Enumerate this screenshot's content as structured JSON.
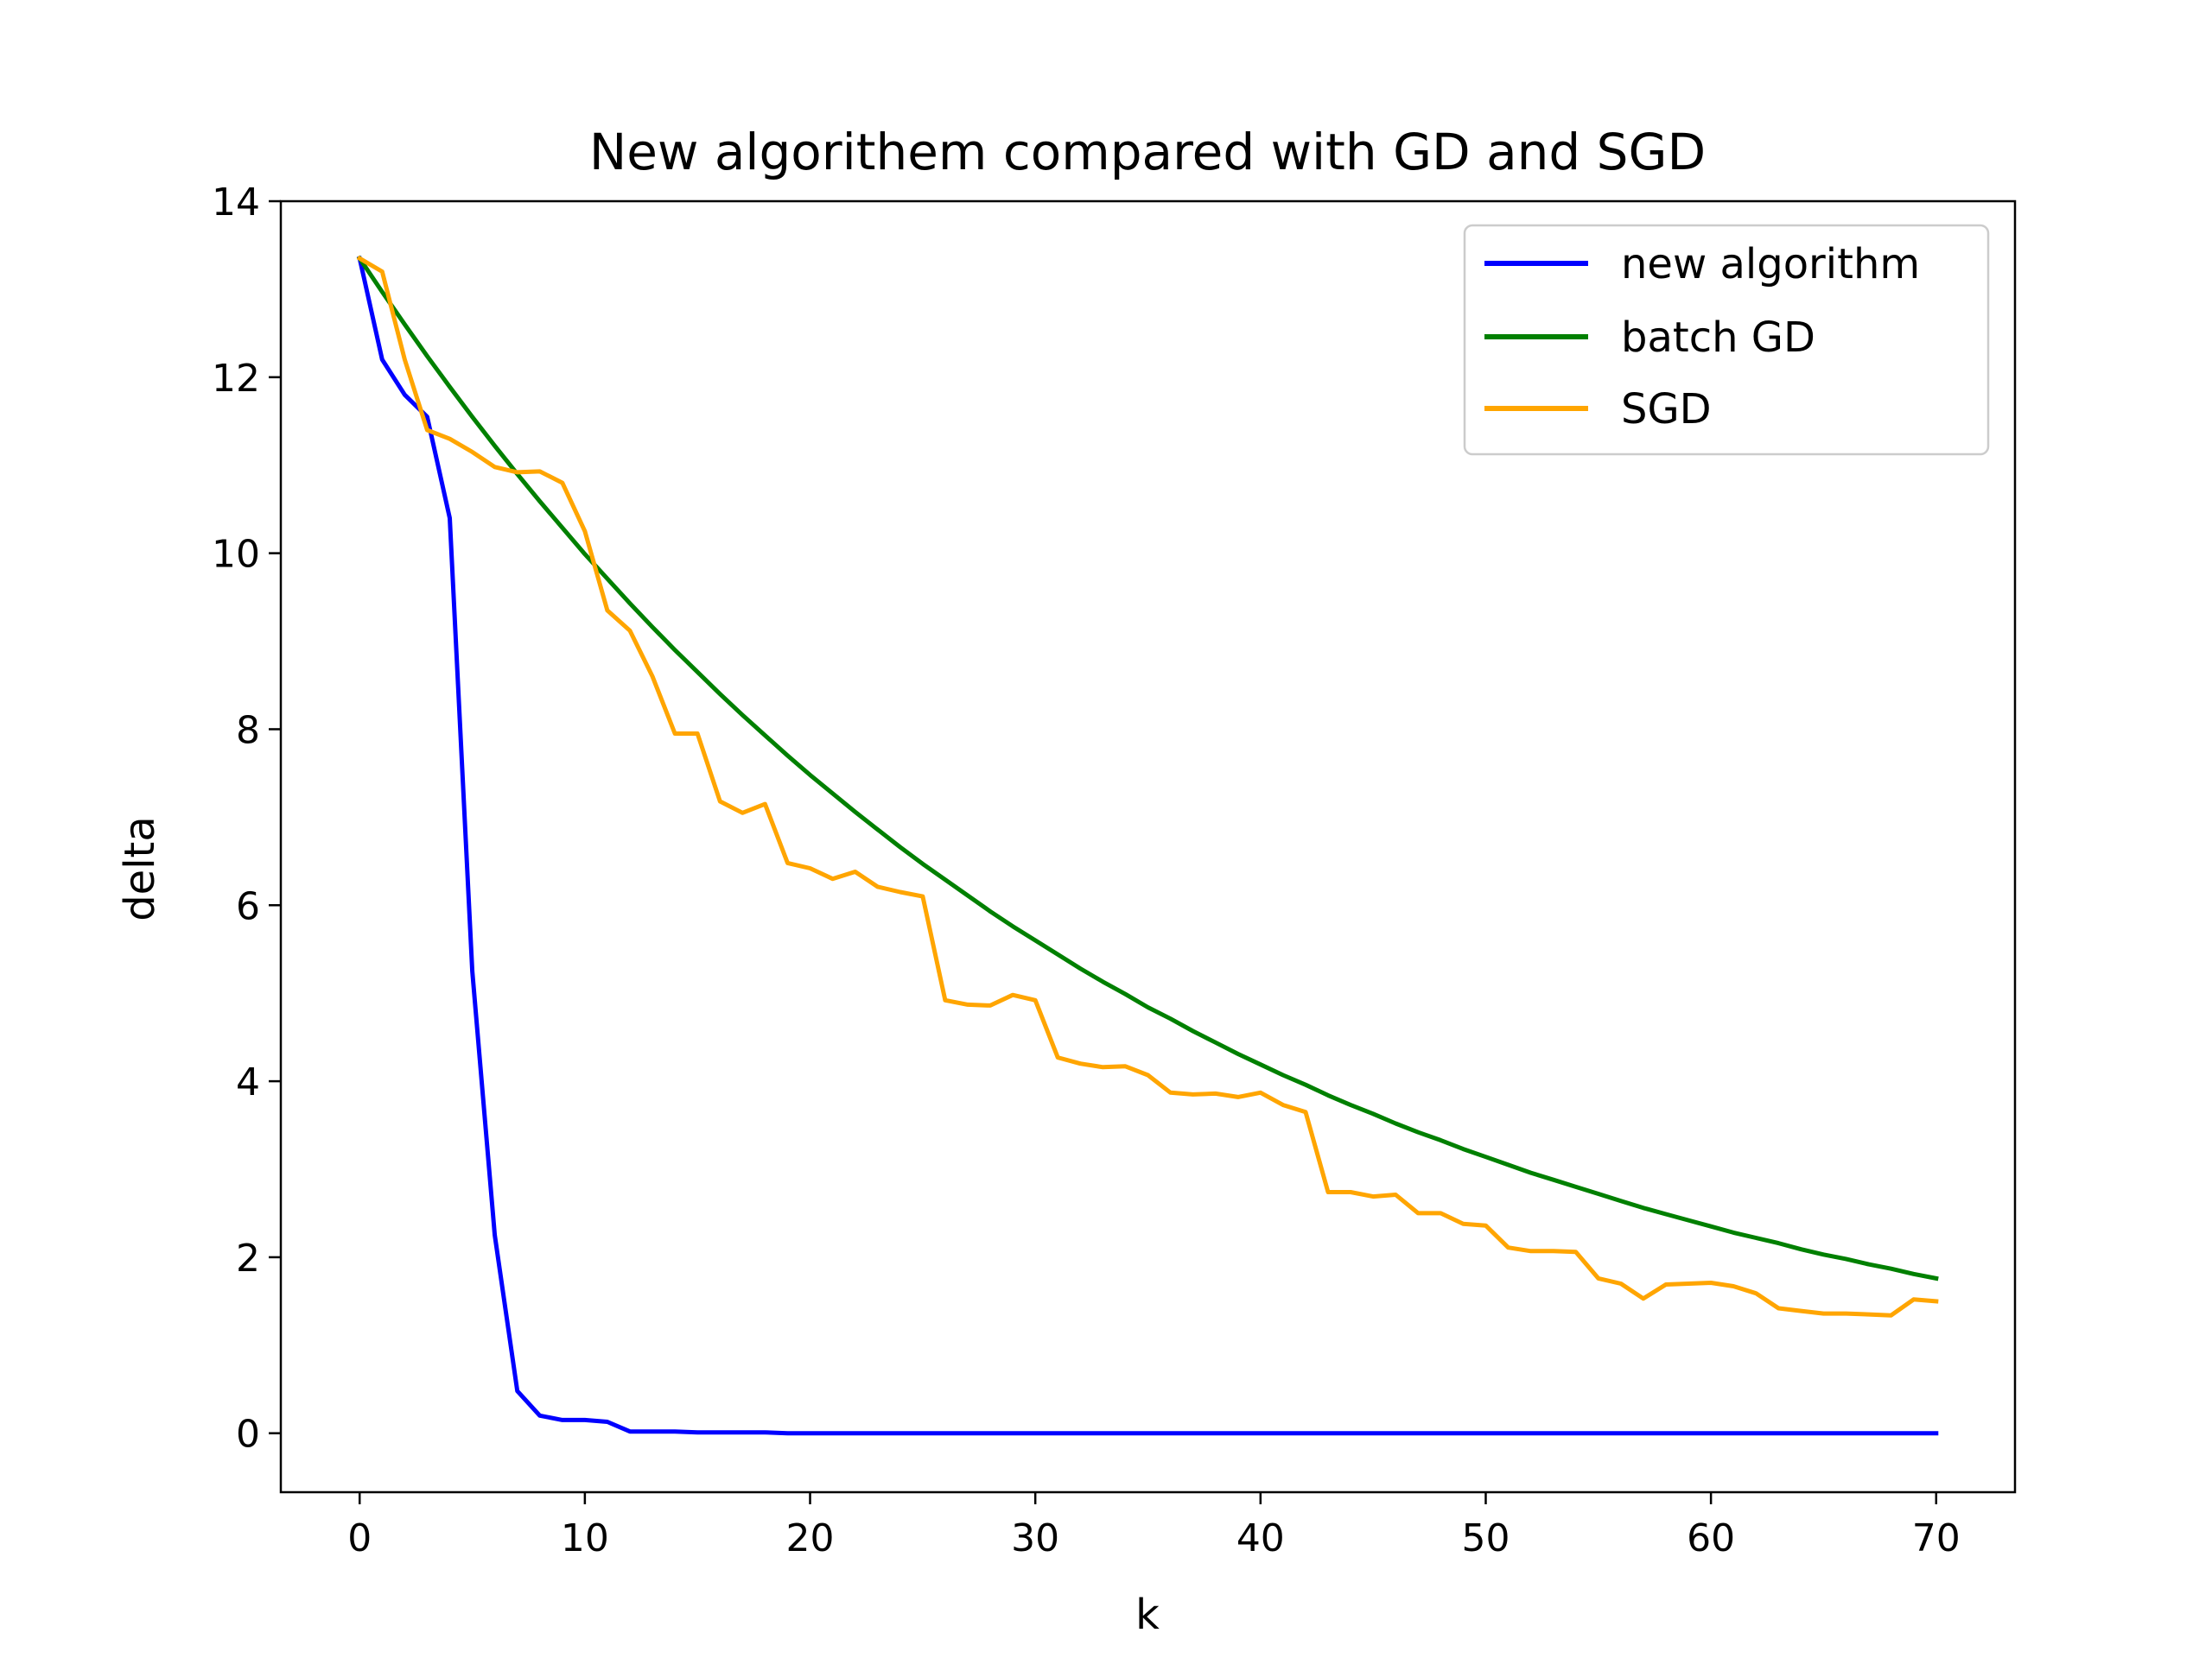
{
  "chart_data": {
    "type": "line",
    "title": "New algorithem compared with GD and SGD",
    "xlabel": "k",
    "ylabel": "delta",
    "xlim": [
      -3.5,
      73.5
    ],
    "ylim": [
      -0.67,
      14.0
    ],
    "xticks": [
      0,
      10,
      20,
      30,
      40,
      50,
      60,
      70
    ],
    "yticks": [
      0,
      2,
      4,
      6,
      8,
      10,
      12,
      14
    ],
    "xtick_labels": [
      "0",
      "10",
      "20",
      "30",
      "40",
      "50",
      "60",
      "70"
    ],
    "ytick_labels": [
      "0",
      "2",
      "4",
      "6",
      "8",
      "10",
      "12",
      "14"
    ],
    "grid": false,
    "legend_position": "top-right",
    "series": [
      {
        "name": "new algorithm",
        "color": "#0000ff",
        "x": [
          0,
          1,
          2,
          3,
          4,
          5,
          6,
          7,
          8,
          9,
          10,
          11,
          12,
          13,
          14,
          15,
          16,
          17,
          18,
          19,
          20,
          21,
          22,
          23,
          24,
          25,
          26,
          27,
          28,
          29,
          30,
          31,
          32,
          33,
          34,
          35,
          36,
          37,
          38,
          39,
          40,
          41,
          42,
          43,
          44,
          45,
          46,
          47,
          48,
          49,
          50,
          51,
          52,
          53,
          54,
          55,
          56,
          57,
          58,
          59,
          60,
          61,
          62,
          63,
          64,
          65,
          66,
          67,
          68,
          69,
          70
        ],
        "y": [
          13.35,
          12.2,
          11.8,
          11.55,
          10.4,
          5.25,
          2.25,
          0.48,
          0.2,
          0.15,
          0.15,
          0.13,
          0.02,
          0.02,
          0.02,
          0.01,
          0.01,
          0.01,
          0.01,
          0.0,
          0.0,
          0.0,
          0.0,
          0.0,
          0.0,
          0.0,
          0.0,
          0.0,
          0.0,
          0.0,
          0.0,
          0.0,
          0.0,
          0.0,
          0.0,
          0.0,
          0.0,
          0.0,
          0.0,
          0.0,
          0.0,
          0.0,
          0.0,
          0.0,
          0.0,
          0.0,
          0.0,
          0.0,
          0.0,
          0.0,
          0.0,
          0.0,
          0.0,
          0.0,
          0.0,
          0.0,
          0.0,
          0.0,
          0.0,
          0.0,
          0.0,
          0.0,
          0.0,
          0.0,
          0.0,
          0.0,
          0.0,
          0.0,
          0.0,
          0.0,
          0.0
        ]
      },
      {
        "name": "batch GD",
        "color": "#008000",
        "x": [
          0,
          1,
          2,
          3,
          4,
          5,
          6,
          7,
          8,
          9,
          10,
          11,
          12,
          13,
          14,
          15,
          16,
          17,
          18,
          19,
          20,
          21,
          22,
          23,
          24,
          25,
          26,
          27,
          28,
          29,
          30,
          31,
          32,
          33,
          34,
          35,
          36,
          37,
          38,
          39,
          40,
          41,
          42,
          43,
          44,
          45,
          46,
          47,
          48,
          49,
          50,
          51,
          52,
          53,
          54,
          55,
          56,
          57,
          58,
          59,
          60,
          61,
          62,
          63,
          64,
          65,
          66,
          67,
          68,
          69,
          70
        ],
        "y": [
          13.35,
          12.97,
          12.6,
          12.24,
          11.89,
          11.55,
          11.22,
          10.9,
          10.59,
          10.29,
          9.99,
          9.71,
          9.43,
          9.16,
          8.9,
          8.65,
          8.4,
          8.16,
          7.93,
          7.7,
          7.48,
          7.27,
          7.06,
          6.86,
          6.66,
          6.47,
          6.29,
          6.11,
          5.93,
          5.76,
          5.6,
          5.44,
          5.28,
          5.13,
          4.99,
          4.84,
          4.71,
          4.57,
          4.44,
          4.31,
          4.19,
          4.07,
          3.96,
          3.84,
          3.73,
          3.63,
          3.52,
          3.42,
          3.33,
          3.23,
          3.14,
          3.05,
          2.96,
          2.88,
          2.8,
          2.72,
          2.64,
          2.56,
          2.49,
          2.42,
          2.35,
          2.28,
          2.22,
          2.16,
          2.09,
          2.03,
          1.98,
          1.92,
          1.87,
          1.81,
          1.76
        ]
      },
      {
        "name": "SGD",
        "color": "#ffa500",
        "x": [
          0,
          1,
          2,
          3,
          4,
          5,
          6,
          7,
          8,
          9,
          10,
          11,
          12,
          13,
          14,
          15,
          16,
          17,
          18,
          19,
          20,
          21,
          22,
          23,
          24,
          25,
          26,
          27,
          28,
          29,
          30,
          31,
          32,
          33,
          34,
          35,
          36,
          37,
          38,
          39,
          40,
          41,
          42,
          43,
          44,
          45,
          46,
          47,
          48,
          49,
          50,
          51,
          52,
          53,
          54,
          55,
          56,
          57,
          58,
          59,
          60,
          61,
          62,
          63,
          64,
          65,
          66,
          67,
          68,
          69,
          70
        ],
        "y": [
          13.35,
          13.2,
          12.2,
          11.4,
          11.3,
          11.15,
          10.98,
          10.92,
          10.93,
          10.8,
          10.25,
          9.35,
          9.12,
          8.6,
          7.95,
          7.95,
          7.18,
          7.05,
          7.15,
          6.48,
          6.42,
          6.3,
          6.38,
          6.21,
          6.15,
          6.1,
          4.92,
          4.87,
          4.86,
          4.98,
          4.92,
          4.27,
          4.2,
          4.16,
          4.17,
          4.07,
          3.87,
          3.85,
          3.86,
          3.82,
          3.87,
          3.73,
          3.65,
          2.74,
          2.74,
          2.69,
          2.71,
          2.5,
          2.5,
          2.38,
          2.36,
          2.11,
          2.07,
          2.07,
          2.06,
          1.76,
          1.7,
          1.53,
          1.69,
          1.7,
          1.71,
          1.67,
          1.59,
          1.42,
          1.39,
          1.36,
          1.36,
          1.35,
          1.34,
          1.52,
          1.5
        ]
      }
    ]
  }
}
